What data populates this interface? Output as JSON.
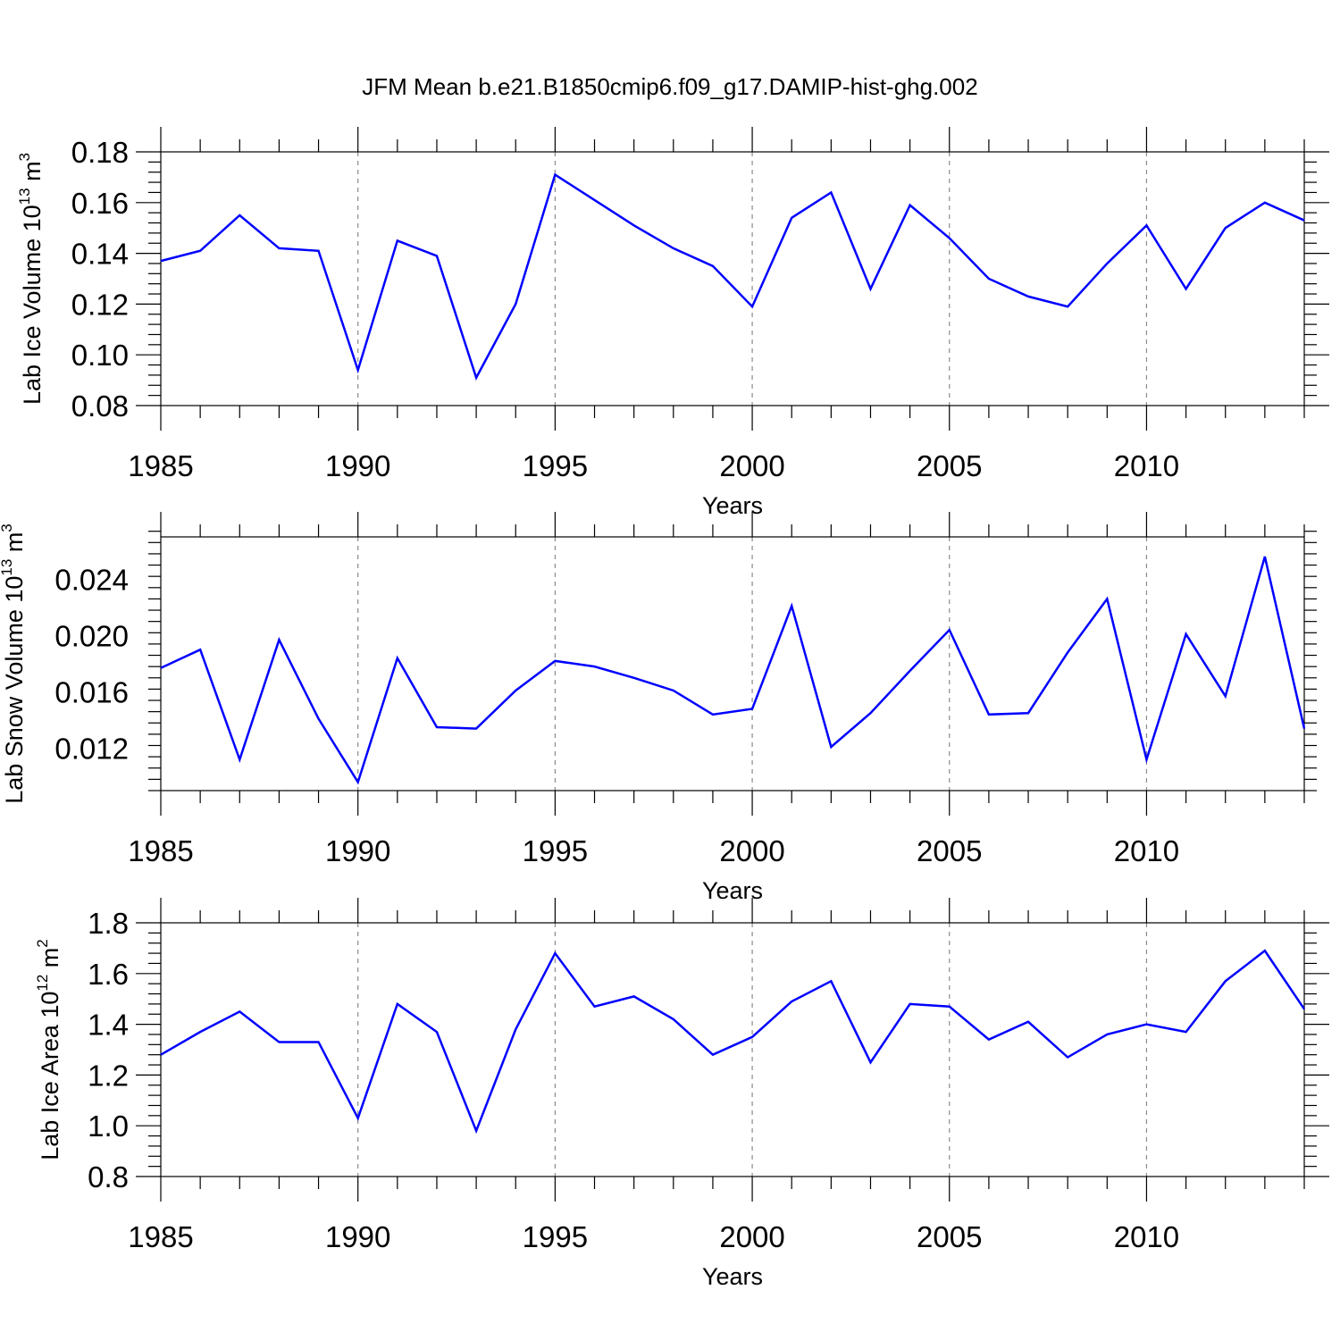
{
  "title": "JFM Mean b.e21.B1850cmip6.f09_g17.DAMIP-hist-ghg.002",
  "chart_data": [
    {
      "type": "line",
      "ylabel_main": "Lab Ice Volume 10",
      "ylabel_exp": "13",
      "ylabel_unit": "m",
      "ylabel_unit_exp": "3",
      "xlabel": "Years",
      "xlim": [
        1985,
        2014
      ],
      "ylim": [
        0.08,
        0.18
      ],
      "yticks": [
        "0.08",
        "0.10",
        "0.12",
        "0.14",
        "0.16",
        "0.18"
      ],
      "xticks": [
        "1985",
        "1990",
        "1995",
        "2000",
        "2005",
        "2010"
      ],
      "x": [
        1985,
        1986,
        1987,
        1988,
        1989,
        1990,
        1991,
        1992,
        1993,
        1994,
        1995,
        1996,
        1997,
        1998,
        1999,
        2000,
        2001,
        2002,
        2003,
        2004,
        2005,
        2006,
        2007,
        2008,
        2009,
        2010,
        2011,
        2012,
        2013,
        2014
      ],
      "values": [
        0.137,
        0.141,
        0.155,
        0.142,
        0.141,
        0.094,
        0.145,
        0.139,
        0.091,
        0.12,
        0.171,
        0.161,
        0.151,
        0.142,
        0.135,
        0.119,
        0.154,
        0.164,
        0.126,
        0.159,
        0.146,
        0.13,
        0.123,
        0.119,
        0.136,
        0.151,
        0.126,
        0.15,
        0.16,
        0.153
      ],
      "color": "#0000ff"
    },
    {
      "type": "line",
      "ylabel_main": "Lab Snow Volume 10",
      "ylabel_exp": "13",
      "ylabel_unit": "m",
      "ylabel_unit_exp": "3",
      "xlabel": "Years",
      "xlim": [
        1985,
        2014
      ],
      "ylim": [
        0.009,
        0.027
      ],
      "yticks": [
        "0.012",
        "0.016",
        "0.020",
        "0.024"
      ],
      "xticks": [
        "1985",
        "1990",
        "1995",
        "2000",
        "2005",
        "2010"
      ],
      "x": [
        1985,
        1986,
        1987,
        1988,
        1989,
        1990,
        1991,
        1992,
        1993,
        1994,
        1995,
        1996,
        1997,
        1998,
        1999,
        2000,
        2001,
        2002,
        2003,
        2004,
        2005,
        2006,
        2007,
        2008,
        2009,
        2010,
        2011,
        2012,
        2013,
        2014
      ],
      "values": [
        0.0177,
        0.019,
        0.0112,
        0.0197,
        0.0141,
        0.0096,
        0.0184,
        0.0135,
        0.0134,
        0.0161,
        0.0182,
        0.0178,
        0.017,
        0.0161,
        0.0144,
        0.0148,
        0.0221,
        0.0121,
        0.0145,
        0.0175,
        0.0204,
        0.0144,
        0.0145,
        0.0188,
        0.0226,
        0.0112,
        0.0201,
        0.0157,
        0.0256,
        0.0134
      ],
      "color": "#0000ff"
    },
    {
      "type": "line",
      "ylabel_main": "Lab Ice Area 10",
      "ylabel_exp": "12",
      "ylabel_unit": "m",
      "ylabel_unit_exp": "2",
      "xlabel": "Years",
      "xlim": [
        1985,
        2014
      ],
      "ylim": [
        0.8,
        1.8
      ],
      "yticks": [
        "0.8",
        "1.0",
        "1.2",
        "1.4",
        "1.6",
        "1.8"
      ],
      "xticks": [
        "1985",
        "1990",
        "1995",
        "2000",
        "2005",
        "2010"
      ],
      "x": [
        1985,
        1986,
        1987,
        1988,
        1989,
        1990,
        1991,
        1992,
        1993,
        1994,
        1995,
        1996,
        1997,
        1998,
        1999,
        2000,
        2001,
        2002,
        2003,
        2004,
        2005,
        2006,
        2007,
        2008,
        2009,
        2010,
        2011,
        2012,
        2013,
        2014
      ],
      "values": [
        1.28,
        1.37,
        1.45,
        1.33,
        1.33,
        1.03,
        1.48,
        1.37,
        0.98,
        1.38,
        1.68,
        1.47,
        1.51,
        1.42,
        1.28,
        1.35,
        1.49,
        1.57,
        1.25,
        1.48,
        1.47,
        1.34,
        1.41,
        1.27,
        1.36,
        1.4,
        1.37,
        1.57,
        1.69,
        1.46
      ],
      "color": "#0000ff"
    }
  ]
}
